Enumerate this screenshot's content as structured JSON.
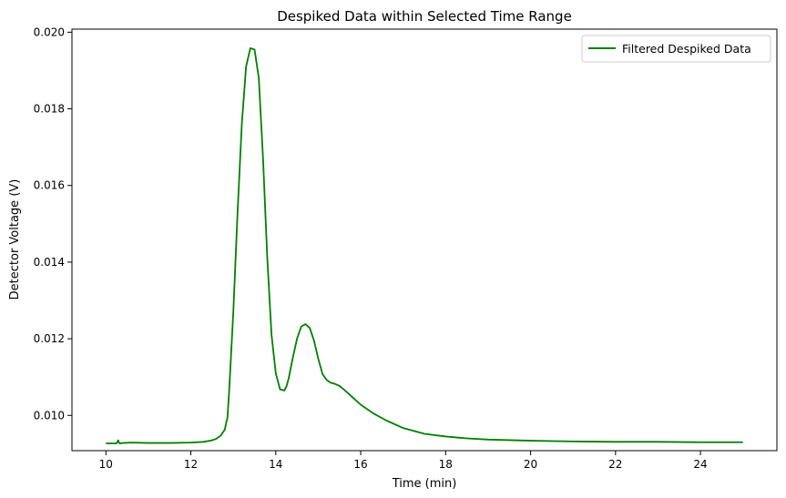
{
  "chart_data": {
    "type": "line",
    "title": "Despiked Data within Selected Time Range",
    "xlabel": "Time (min)",
    "ylabel": "Detector Voltage (V)",
    "xlim": [
      9.2,
      25.8
    ],
    "ylim": [
      0.00908,
      0.02008
    ],
    "x_ticks": [
      10,
      12,
      14,
      16,
      18,
      20,
      22,
      24
    ],
    "y_ticks": [
      0.01,
      0.012,
      0.014,
      0.016,
      0.018,
      0.02
    ],
    "y_tick_labels": [
      "0.010",
      "0.012",
      "0.014",
      "0.016",
      "0.018",
      "0.020"
    ],
    "grid": false,
    "legend_position": "top-right",
    "series": [
      {
        "name": "Filtered Despiked Data",
        "color": "#008000",
        "x": [
          10.0,
          10.25,
          10.29,
          10.31,
          10.33,
          10.4,
          10.6,
          11.0,
          11.5,
          12.0,
          12.3,
          12.5,
          12.6,
          12.7,
          12.8,
          12.84,
          12.86,
          12.9,
          13.0,
          13.1,
          13.2,
          13.3,
          13.4,
          13.5,
          13.6,
          13.7,
          13.8,
          13.9,
          14.0,
          14.1,
          14.2,
          14.25,
          14.3,
          14.4,
          14.5,
          14.6,
          14.7,
          14.8,
          14.9,
          15.0,
          15.1,
          15.2,
          15.3,
          15.4,
          15.5,
          15.6,
          15.8,
          16.0,
          16.3,
          16.6,
          17.0,
          17.5,
          18.0,
          18.5,
          19.0,
          20.0,
          21.0,
          22.0,
          23.0,
          24.0,
          25.0
        ],
        "values": [
          0.00927,
          0.00927,
          0.00935,
          0.00928,
          0.00927,
          0.00928,
          0.00929,
          0.00928,
          0.00928,
          0.00929,
          0.00931,
          0.00935,
          0.00939,
          0.00947,
          0.00963,
          0.00985,
          0.00992,
          0.0106,
          0.0127,
          0.0153,
          0.0176,
          0.0191,
          0.01958,
          0.01955,
          0.0188,
          0.0167,
          0.0141,
          0.0121,
          0.0111,
          0.01068,
          0.01065,
          0.01075,
          0.01095,
          0.0115,
          0.012,
          0.01232,
          0.01238,
          0.01228,
          0.01195,
          0.01148,
          0.01108,
          0.01092,
          0.01085,
          0.01082,
          0.01077,
          0.01068,
          0.01048,
          0.01028,
          0.01005,
          0.00987,
          0.00967,
          0.00952,
          0.00945,
          0.0094,
          0.00937,
          0.00934,
          0.00932,
          0.00931,
          0.00931,
          0.0093,
          0.0093
        ]
      }
    ]
  }
}
